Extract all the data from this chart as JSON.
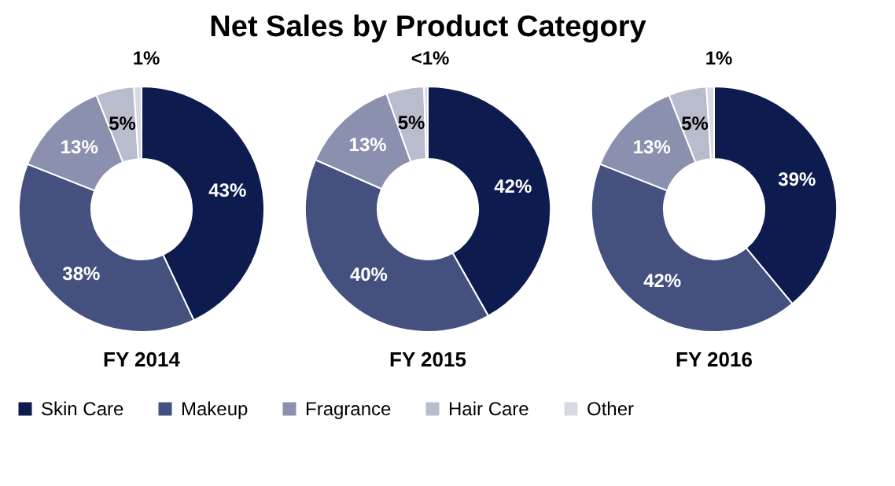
{
  "chart_data": [
    {
      "type": "donut",
      "title": "Net Sales by Product Category",
      "xlabel": "FY 2014",
      "categories": [
        "Skin Care",
        "Makeup",
        "Fragrance",
        "Hair Care",
        "Other"
      ],
      "values": [
        43,
        38,
        13,
        5,
        1
      ],
      "value_labels": [
        "43%",
        "38%",
        "13%",
        "5%",
        "1%"
      ],
      "colors": [
        "#0d1b4f",
        "#44517f",
        "#8a90ad",
        "#b9bccd",
        "#d7d9e3"
      ],
      "legend": "bottom"
    },
    {
      "type": "donut",
      "xlabel": "FY 2015",
      "categories": [
        null,
        null,
        null,
        null,
        null
      ],
      "values": [
        42,
        40,
        13,
        5,
        0.5
      ],
      "value_labels": [
        "42%",
        "40%",
        "13%",
        "5%",
        "<1%"
      ],
      "colors": [
        "#0d1b4f",
        "#44517f",
        "#8a90ad",
        "#b9bccd",
        "#d7d9e3"
      ]
    },
    {
      "type": "donut",
      "xlabel": "FY 2016",
      "categories": [
        null,
        null,
        null,
        null,
        null
      ],
      "values": [
        39,
        42,
        13,
        5,
        1
      ],
      "value_labels": [
        "39%",
        "42%",
        "13%",
        "5%",
        "1%"
      ],
      "colors": [
        "#0d1b4f",
        "#44517f",
        "#8a90ad",
        "#b9bccd",
        "#d7d9e3"
      ]
    }
  ]
}
